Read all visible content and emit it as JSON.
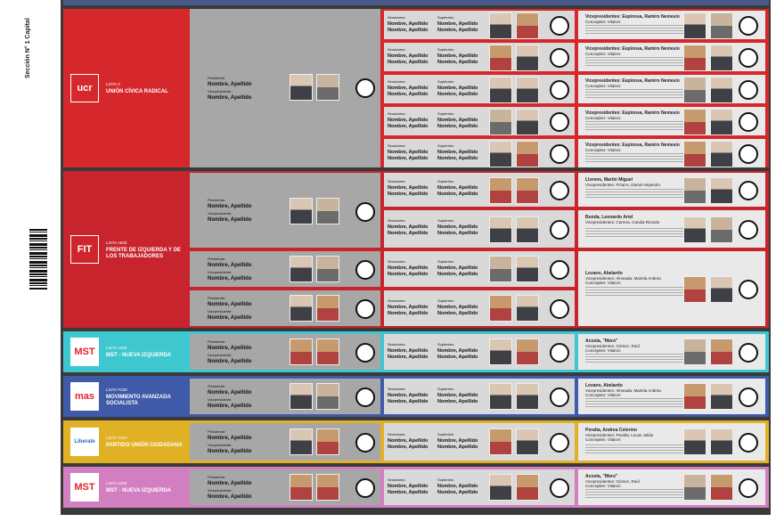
{
  "side_label": "Sección N° 1 Capital",
  "president_label": "Presidente:",
  "vice_label": "Vicepresidente:",
  "name_placeholder": "Nombre, Apellido",
  "senators_label": "Senadores:",
  "supplents_label": "Suplentes:",
  "parties": [
    {
      "name": "UNIÓN CÍVICA RADICAL",
      "lista": "Lista 3",
      "logo": "ucr",
      "color": "#d6282c",
      "logo_bg": "#d6282c",
      "logo_fg": "#fff"
    },
    {
      "name": "FRENTE DE IZQUIERDA Y DE LOS TRABAJADORES",
      "lista": "Lista A830",
      "logo": "FIT",
      "color": "#c8242d",
      "logo_bg": "#d0252b",
      "logo_fg": "#fff"
    },
    {
      "name": "MST - NUEVA IZQUIERDA",
      "lista": "Lista A200",
      "logo": "MST",
      "color": "#3ec7cf",
      "logo_bg": "#fff",
      "logo_fg": "#e2242b"
    },
    {
      "name": "MOVIMIENTO AVANZADA SOCIALISTA",
      "lista": "Lista P230",
      "logo": "mas",
      "color": "#3e5aa8",
      "logo_bg": "#fff",
      "logo_fg": "#e2242b"
    },
    {
      "name": "PARTIDO UNIÓN CIUDADANA",
      "lista": "Lista Y210",
      "logo": "Liberate",
      "color": "#e1b125",
      "logo_bg": "#fff",
      "logo_fg": "#2a6db5"
    },
    {
      "name": "MST - NUEVA IZQUIERDA",
      "lista": "Lista A200",
      "logo": "MST",
      "color": "#d27fc2",
      "logo_bg": "#fff",
      "logo_fg": "#e2242b"
    }
  ],
  "diputados": {
    "header1": "Vicepresidentes: Espinosa, Ramiro Nemesio",
    "header2": "Concejales: Vitaloni",
    "fit_1": "Llorens, Martín Miguel",
    "fit_1b": "Vicepresidentes: Pizarro, Daniel Alejandro",
    "fit_2": "Bunda, Leonardo Ariel",
    "fit_2b": "Vicepresidentes: Carrera, Candia Ricardo",
    "fit_3": "Lozano, Abelardo",
    "fit_3b": "Vicepresidentes: Almeada, Mariela Andrea",
    "fit_3c": "Concejales: Vitaloni",
    "mst_1": "Acosta, \"Moro\"",
    "mst_1b": "Vicepresidentes: Gómez, Raúl",
    "mst_1c": "Concejales: Vitaloni",
    "mas_1": "Lozano, Abelardo",
    "mas_1b": "Vicepresidentes: Almeada, Mariela Andrea",
    "mas_1c": "Concejales: Vitaloni",
    "puc_1": "Peralta, Andrea Celerino",
    "puc_1b": "Vicepresidentes: Peralta, Lucas Julián",
    "puc_1c": "Concejales: Vitaloni",
    "mst2_1": "Acosta, \"Moro\"",
    "mst2_1b": "Vicepresidentes: Gómez, Raúl",
    "mst2_1c": "Concejales: Vitaloni"
  }
}
